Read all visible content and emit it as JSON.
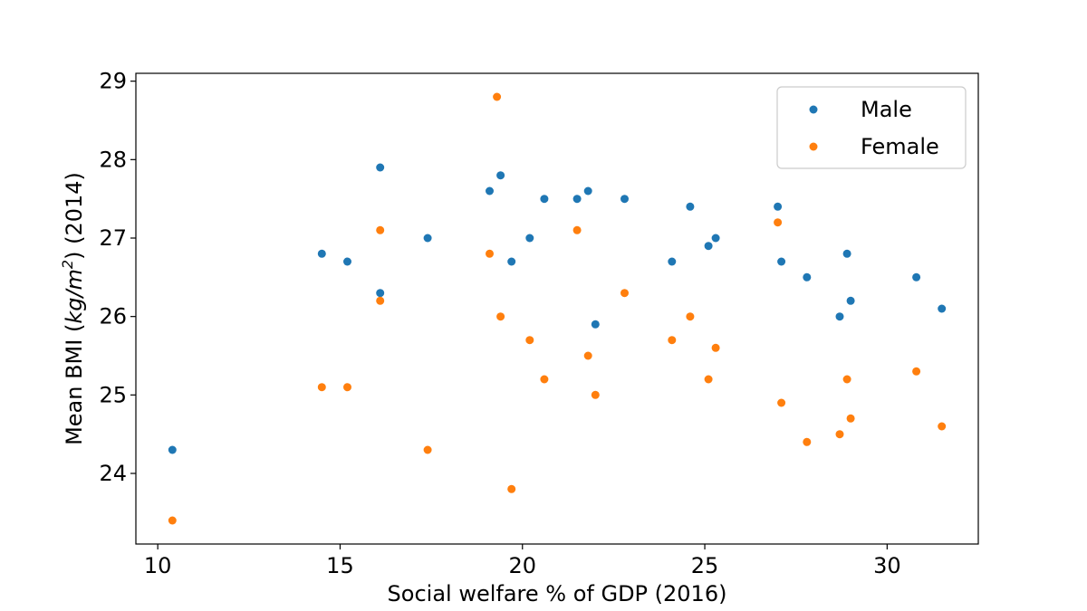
{
  "chart_data": {
    "type": "scatter",
    "title": "",
    "xlabel": "Social welfare % of GDP (2016)",
    "ylabel": {
      "prefix": "Mean BMI (",
      "unit_var": "kg/m",
      "unit_exp": "2",
      "suffix": ") (2014)"
    },
    "xlim": [
      9.4,
      32.5
    ],
    "ylim": [
      23.1,
      29.1
    ],
    "xticks": [
      10,
      15,
      20,
      25,
      30
    ],
    "yticks": [
      24,
      25,
      26,
      27,
      28,
      29
    ],
    "legend": {
      "location": "top-right"
    },
    "series": [
      {
        "name": "Male",
        "color": "#1f77b4",
        "points": [
          [
            10.4,
            24.3
          ],
          [
            14.5,
            26.8
          ],
          [
            15.2,
            26.7
          ],
          [
            16.1,
            27.9
          ],
          [
            16.1,
            26.3
          ],
          [
            17.4,
            27.0
          ],
          [
            19.1,
            27.6
          ],
          [
            19.4,
            27.8
          ],
          [
            19.7,
            26.7
          ],
          [
            20.2,
            27.0
          ],
          [
            20.6,
            27.5
          ],
          [
            21.5,
            27.5
          ],
          [
            21.8,
            27.6
          ],
          [
            22.0,
            25.9
          ],
          [
            22.8,
            27.5
          ],
          [
            24.1,
            26.7
          ],
          [
            24.6,
            27.4
          ],
          [
            25.1,
            26.9
          ],
          [
            25.3,
            27.0
          ],
          [
            27.0,
            27.4
          ],
          [
            27.1,
            26.7
          ],
          [
            27.8,
            26.5
          ],
          [
            28.7,
            26.0
          ],
          [
            28.9,
            26.8
          ],
          [
            29.0,
            26.2
          ],
          [
            30.8,
            26.5
          ],
          [
            31.5,
            26.1
          ]
        ]
      },
      {
        "name": "Female",
        "color": "#ff7f0e",
        "points": [
          [
            10.4,
            23.4
          ],
          [
            14.5,
            25.1
          ],
          [
            15.2,
            25.1
          ],
          [
            16.1,
            27.1
          ],
          [
            16.1,
            26.2
          ],
          [
            17.4,
            24.3
          ],
          [
            19.1,
            26.8
          ],
          [
            19.3,
            28.8
          ],
          [
            19.4,
            26.0
          ],
          [
            19.7,
            23.8
          ],
          [
            20.2,
            25.7
          ],
          [
            20.6,
            25.2
          ],
          [
            21.5,
            27.1
          ],
          [
            21.8,
            25.5
          ],
          [
            22.0,
            25.0
          ],
          [
            22.8,
            26.3
          ],
          [
            24.1,
            25.7
          ],
          [
            24.6,
            26.0
          ],
          [
            25.1,
            25.2
          ],
          [
            25.3,
            25.6
          ],
          [
            27.0,
            27.2
          ],
          [
            27.1,
            24.9
          ],
          [
            27.8,
            24.4
          ],
          [
            28.7,
            24.5
          ],
          [
            28.9,
            25.2
          ],
          [
            29.0,
            24.7
          ],
          [
            30.8,
            25.3
          ],
          [
            31.5,
            24.6
          ]
        ]
      }
    ]
  }
}
